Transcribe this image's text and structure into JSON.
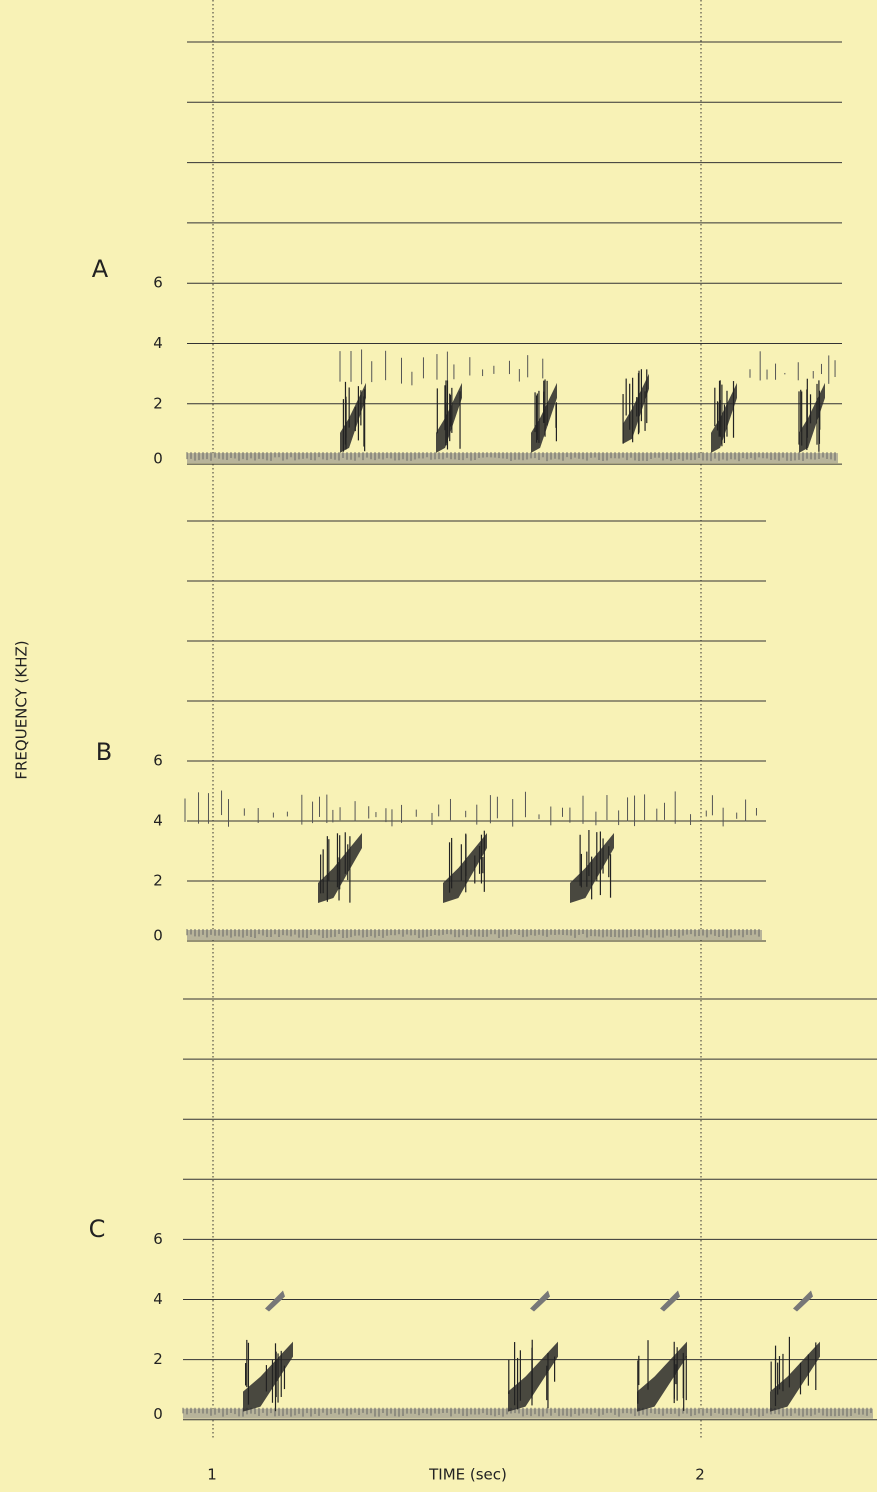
{
  "y_axis_label": "FREQUENCY (KHZ)",
  "x_axis_label": "TIME (sec)",
  "x_ticks": [
    1,
    2
  ],
  "panels": [
    {
      "label": "A",
      "y_ticks": [
        0,
        2,
        4,
        6
      ]
    },
    {
      "label": "B",
      "y_ticks": [
        0,
        2,
        4,
        6
      ]
    },
    {
      "label": "C",
      "y_ticks": [
        0,
        2,
        4,
        6
      ]
    }
  ]
}
